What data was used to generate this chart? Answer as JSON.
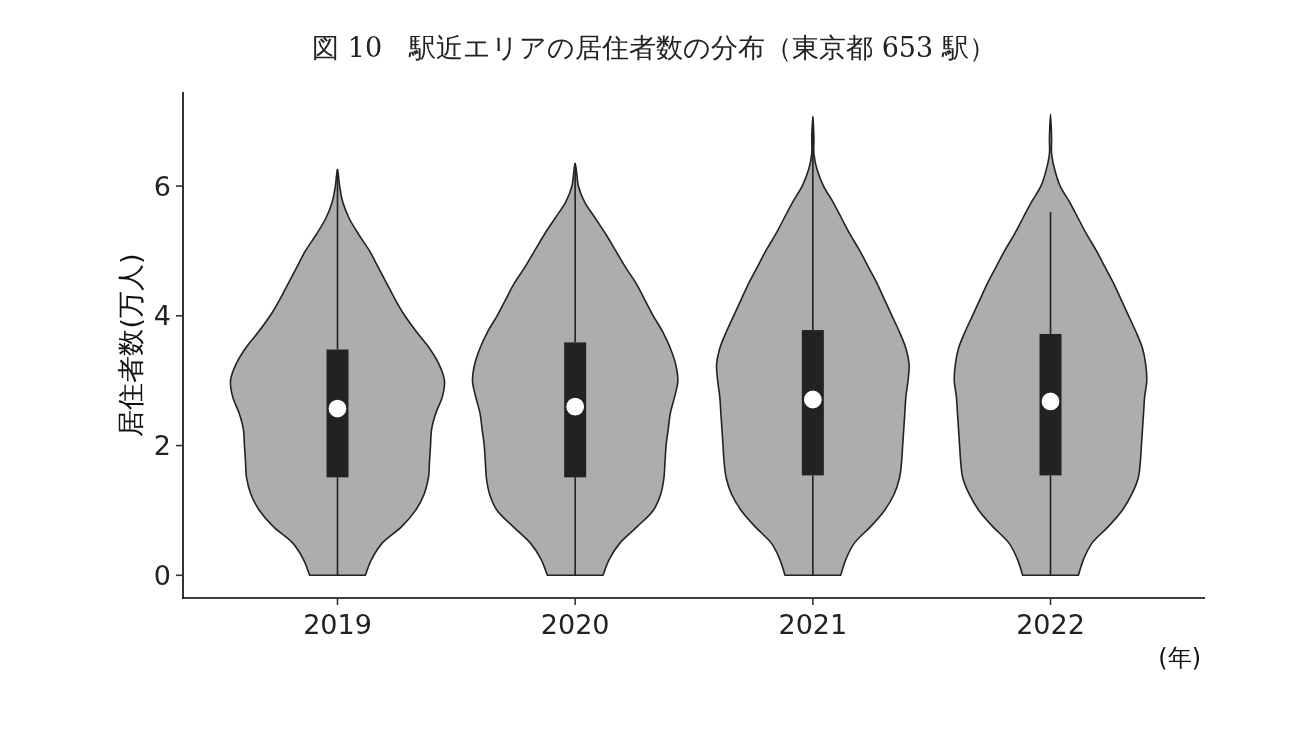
{
  "chart_data": {
    "type": "box",
    "title": "図 10　駅近エリアの居住者数の分布（東京都 653 駅）",
    "ylabel": "居住者数(万人)",
    "xlabel": "(年)",
    "categories": [
      "2019",
      "2020",
      "2021",
      "2022"
    ],
    "ylim": [
      -0.35,
      7.45
    ],
    "yticks": [
      0,
      2,
      4,
      6
    ],
    "series": [
      {
        "type": "box",
        "color": "#222222",
        "boxes": [
          {
            "low": 0,
            "q1": 1.51,
            "median": 2.57,
            "q3": 3.48,
            "high": 6.26
          },
          {
            "low": 0,
            "q1": 1.51,
            "median": 2.6,
            "q3": 3.59,
            "high": 6.35
          },
          {
            "low": 0,
            "q1": 1.54,
            "median": 2.71,
            "q3": 3.78,
            "high": 7.07
          },
          {
            "low": 0,
            "q1": 1.54,
            "median": 2.68,
            "q3": 3.72,
            "high": 5.6
          }
        ]
      }
    ]
  }
}
